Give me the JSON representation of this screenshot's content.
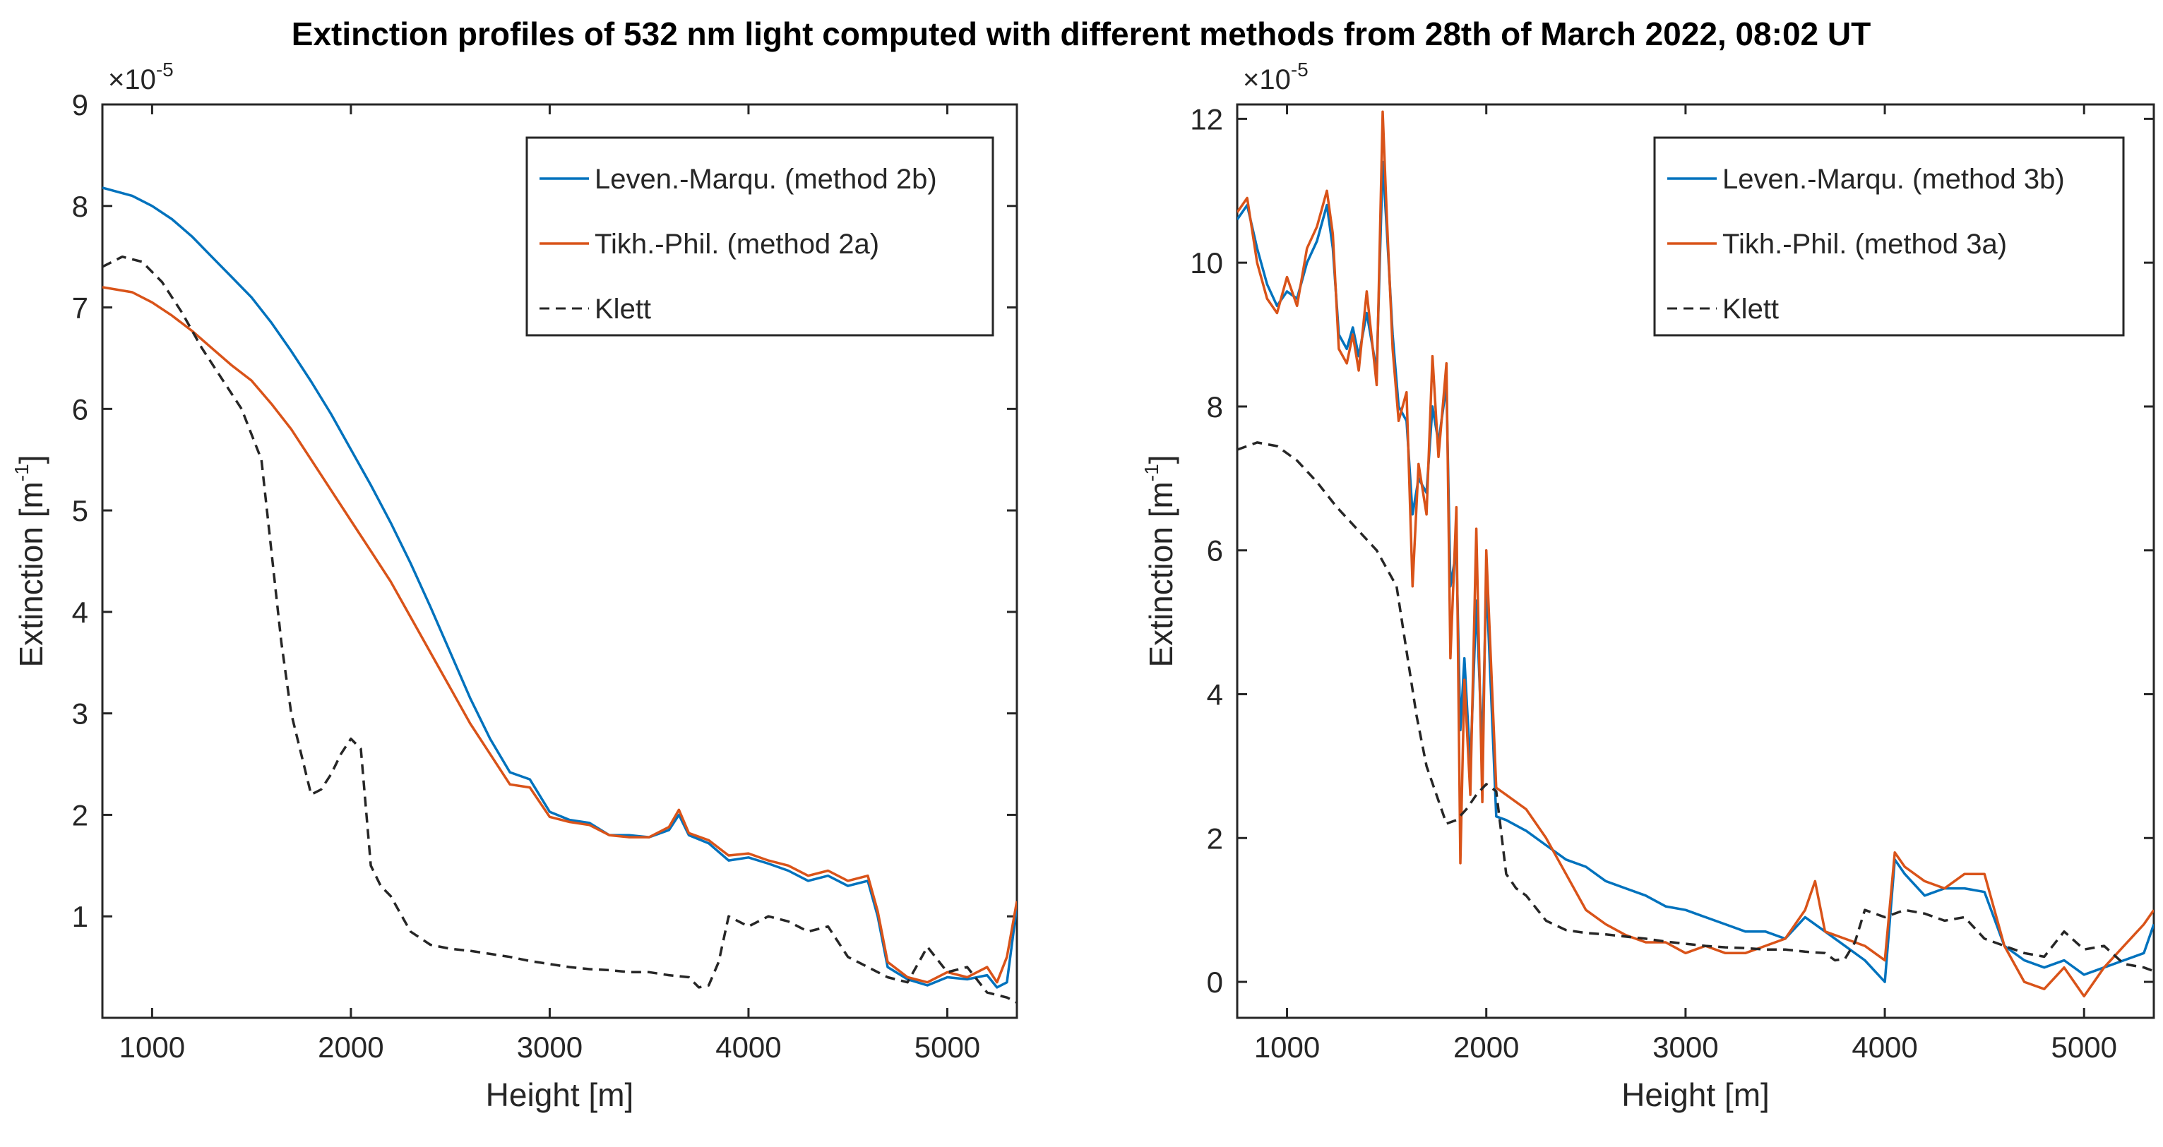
{
  "title": "Extinction profiles of 532 nm light computed with different methods from 28th of March 2022, 08:02 UT",
  "colors": {
    "blue": "#0072BD",
    "orange": "#D95319",
    "black": "#262626"
  },
  "chart_data": [
    {
      "type": "line",
      "xlabel": "Height [m]",
      "ylabel": "Extinction [m",
      "ylabel_exp": "-1",
      "ylabel_close": "]",
      "exponent_base": "×10",
      "exponent_power": "-5",
      "xlim": [
        750,
        5350
      ],
      "ylim": [
        0,
        9
      ],
      "xticks": [
        1000,
        2000,
        3000,
        4000,
        5000
      ],
      "yticks": [
        1,
        2,
        3,
        4,
        5,
        6,
        7,
        8,
        9
      ],
      "legend_position": "top-right",
      "series": [
        {
          "name": "Leven.-Marqu. (method 2b)",
          "color": "#0072BD",
          "style": "solid",
          "x": [
            750,
            900,
            1000,
            1100,
            1200,
            1300,
            1400,
            1500,
            1600,
            1700,
            1800,
            1900,
            2000,
            2100,
            2200,
            2300,
            2400,
            2500,
            2600,
            2700,
            2800,
            2900,
            3000,
            3100,
            3200,
            3300,
            3400,
            3500,
            3600,
            3650,
            3700,
            3800,
            3900,
            4000,
            4100,
            4200,
            4300,
            4400,
            4500,
            4600,
            4650,
            4700,
            4800,
            4900,
            5000,
            5100,
            5200,
            5250,
            5300,
            5350
          ],
          "y": [
            8.18,
            8.1,
            8.0,
            7.87,
            7.7,
            7.5,
            7.3,
            7.1,
            6.85,
            6.57,
            6.27,
            5.95,
            5.6,
            5.25,
            4.88,
            4.48,
            4.05,
            3.6,
            3.15,
            2.75,
            2.42,
            2.35,
            2.03,
            1.95,
            1.92,
            1.8,
            1.8,
            1.78,
            1.85,
            2.0,
            1.8,
            1.72,
            1.55,
            1.58,
            1.52,
            1.45,
            1.35,
            1.4,
            1.3,
            1.35,
            1.0,
            0.5,
            0.38,
            0.32,
            0.4,
            0.38,
            0.42,
            0.3,
            0.35,
            1.1
          ]
        },
        {
          "name": "Tikh.-Phil. (method 2a)",
          "color": "#D95319",
          "style": "solid",
          "x": [
            750,
            900,
            1000,
            1100,
            1200,
            1300,
            1400,
            1500,
            1600,
            1700,
            1800,
            1900,
            2000,
            2100,
            2200,
            2300,
            2400,
            2500,
            2600,
            2700,
            2800,
            2900,
            3000,
            3100,
            3200,
            3300,
            3400,
            3500,
            3600,
            3650,
            3700,
            3800,
            3900,
            4000,
            4100,
            4200,
            4300,
            4400,
            4500,
            4600,
            4650,
            4700,
            4800,
            4900,
            5000,
            5100,
            5200,
            5250,
            5300,
            5350
          ],
          "y": [
            7.2,
            7.15,
            7.05,
            6.92,
            6.77,
            6.6,
            6.43,
            6.28,
            6.05,
            5.8,
            5.5,
            5.2,
            4.9,
            4.6,
            4.3,
            3.95,
            3.6,
            3.25,
            2.9,
            2.6,
            2.3,
            2.27,
            1.98,
            1.93,
            1.9,
            1.8,
            1.78,
            1.78,
            1.88,
            2.05,
            1.82,
            1.75,
            1.6,
            1.62,
            1.55,
            1.5,
            1.4,
            1.45,
            1.35,
            1.4,
            1.05,
            0.55,
            0.4,
            0.35,
            0.45,
            0.4,
            0.5,
            0.35,
            0.6,
            1.15
          ]
        },
        {
          "name": "Klett",
          "color": "#262626",
          "style": "dashed",
          "x": [
            750,
            850,
            950,
            1050,
            1150,
            1250,
            1350,
            1450,
            1550,
            1600,
            1650,
            1700,
            1750,
            1800,
            1850,
            1900,
            1950,
            2000,
            2050,
            2100,
            2150,
            2200,
            2300,
            2400,
            2500,
            2600,
            2700,
            2800,
            2900,
            3000,
            3100,
            3200,
            3300,
            3400,
            3500,
            3600,
            3700,
            3750,
            3800,
            3850,
            3900,
            4000,
            4100,
            4200,
            4300,
            4400,
            4500,
            4600,
            4700,
            4800,
            4900,
            5000,
            5100,
            5200,
            5300,
            5350
          ],
          "y": [
            7.4,
            7.5,
            7.45,
            7.25,
            6.95,
            6.6,
            6.3,
            6.0,
            5.5,
            4.6,
            3.7,
            3.0,
            2.6,
            2.2,
            2.25,
            2.4,
            2.6,
            2.75,
            2.65,
            1.5,
            1.3,
            1.2,
            0.85,
            0.72,
            0.68,
            0.66,
            0.63,
            0.6,
            0.56,
            0.53,
            0.5,
            0.48,
            0.47,
            0.45,
            0.45,
            0.42,
            0.4,
            0.3,
            0.32,
            0.55,
            1.0,
            0.9,
            1.0,
            0.95,
            0.85,
            0.9,
            0.6,
            0.5,
            0.4,
            0.35,
            0.7,
            0.45,
            0.5,
            0.25,
            0.2,
            0.15
          ]
        }
      ]
    },
    {
      "type": "line",
      "xlabel": "Height [m]",
      "ylabel": "Extinction [m",
      "ylabel_exp": "-1",
      "ylabel_close": "]",
      "exponent_base": "×10",
      "exponent_power": "-5",
      "xlim": [
        750,
        5350
      ],
      "ylim": [
        -0.5,
        12.2
      ],
      "xticks": [
        1000,
        2000,
        3000,
        4000,
        5000
      ],
      "yticks": [
        0,
        2,
        4,
        6,
        8,
        10,
        12
      ],
      "legend_position": "top-right",
      "series": [
        {
          "name": "Leven.-Marqu. (method 3b)",
          "color": "#0072BD",
          "style": "solid",
          "x": [
            750,
            800,
            850,
            900,
            950,
            1000,
            1050,
            1100,
            1150,
            1200,
            1230,
            1260,
            1300,
            1330,
            1360,
            1400,
            1450,
            1480,
            1500,
            1530,
            1560,
            1600,
            1630,
            1660,
            1700,
            1730,
            1760,
            1800,
            1820,
            1850,
            1870,
            1890,
            1920,
            1950,
            1980,
            2000,
            2050,
            2100,
            2200,
            2300,
            2400,
            2500,
            2600,
            2700,
            2800,
            2900,
            3000,
            3100,
            3200,
            3300,
            3400,
            3500,
            3600,
            3700,
            3800,
            3900,
            4000,
            4050,
            4100,
            4200,
            4300,
            4400,
            4500,
            4600,
            4700,
            4800,
            4900,
            5000,
            5100,
            5200,
            5300,
            5350
          ],
          "y": [
            10.6,
            10.8,
            10.2,
            9.7,
            9.4,
            9.6,
            9.5,
            10.0,
            10.3,
            10.8,
            10.2,
            9.0,
            8.8,
            9.1,
            8.7,
            9.3,
            8.5,
            11.4,
            10.5,
            9.0,
            8.0,
            7.8,
            6.5,
            7.0,
            6.8,
            8.0,
            7.5,
            8.3,
            5.5,
            6.0,
            3.5,
            4.5,
            3.0,
            5.3,
            3.2,
            5.6,
            2.3,
            2.25,
            2.1,
            1.9,
            1.7,
            1.6,
            1.4,
            1.3,
            1.2,
            1.05,
            1.0,
            0.9,
            0.8,
            0.7,
            0.7,
            0.6,
            0.9,
            0.7,
            0.5,
            0.3,
            0.0,
            1.7,
            1.5,
            1.2,
            1.3,
            1.3,
            1.25,
            0.5,
            0.3,
            0.2,
            0.3,
            0.1,
            0.2,
            0.3,
            0.4,
            0.8
          ]
        },
        {
          "name": "Tikh.-Phil. (method 3a)",
          "color": "#D95319",
          "style": "solid",
          "x": [
            750,
            800,
            850,
            900,
            950,
            1000,
            1050,
            1100,
            1150,
            1200,
            1230,
            1260,
            1300,
            1330,
            1360,
            1400,
            1450,
            1480,
            1500,
            1530,
            1560,
            1600,
            1630,
            1660,
            1700,
            1730,
            1760,
            1800,
            1820,
            1850,
            1870,
            1890,
            1920,
            1950,
            1980,
            2000,
            2050,
            2100,
            2200,
            2300,
            2400,
            2500,
            2600,
            2700,
            2800,
            2900,
            3000,
            3100,
            3200,
            3300,
            3400,
            3500,
            3600,
            3650,
            3700,
            3800,
            3900,
            4000,
            4050,
            4100,
            4200,
            4300,
            4400,
            4500,
            4600,
            4700,
            4800,
            4900,
            5000,
            5100,
            5200,
            5300,
            5350
          ],
          "y": [
            10.7,
            10.9,
            10.0,
            9.5,
            9.3,
            9.8,
            9.4,
            10.2,
            10.5,
            11.0,
            10.4,
            8.8,
            8.6,
            9.0,
            8.5,
            9.6,
            8.3,
            12.1,
            10.7,
            8.8,
            7.8,
            8.2,
            5.5,
            7.2,
            6.5,
            8.7,
            7.3,
            8.6,
            4.5,
            6.6,
            1.65,
            4.2,
            2.6,
            6.3,
            2.5,
            6.0,
            2.7,
            2.6,
            2.4,
            2.0,
            1.5,
            1.0,
            0.8,
            0.65,
            0.55,
            0.55,
            0.4,
            0.5,
            0.4,
            0.4,
            0.5,
            0.6,
            1.0,
            1.4,
            0.7,
            0.6,
            0.5,
            0.3,
            1.8,
            1.6,
            1.4,
            1.3,
            1.5,
            1.5,
            0.5,
            0.0,
            -0.1,
            0.2,
            -0.2,
            0.2,
            0.5,
            0.8,
            1.0
          ]
        },
        {
          "name": "Klett",
          "color": "#262626",
          "style": "dashed",
          "x": [
            750,
            850,
            950,
            1050,
            1150,
            1250,
            1350,
            1450,
            1550,
            1600,
            1650,
            1700,
            1750,
            1800,
            1850,
            1900,
            1950,
            2000,
            2050,
            2100,
            2150,
            2200,
            2300,
            2400,
            2500,
            2600,
            2700,
            2800,
            2900,
            3000,
            3100,
            3200,
            3300,
            3400,
            3500,
            3600,
            3700,
            3750,
            3800,
            3850,
            3900,
            4000,
            4100,
            4200,
            4300,
            4400,
            4500,
            4600,
            4700,
            4800,
            4900,
            5000,
            5100,
            5200,
            5300,
            5350
          ],
          "y": [
            7.4,
            7.5,
            7.45,
            7.25,
            6.95,
            6.6,
            6.3,
            6.0,
            5.5,
            4.6,
            3.7,
            3.0,
            2.6,
            2.2,
            2.25,
            2.4,
            2.6,
            2.75,
            2.65,
            1.5,
            1.3,
            1.2,
            0.85,
            0.72,
            0.68,
            0.66,
            0.63,
            0.6,
            0.56,
            0.53,
            0.5,
            0.48,
            0.47,
            0.45,
            0.45,
            0.42,
            0.4,
            0.3,
            0.32,
            0.55,
            1.0,
            0.9,
            1.0,
            0.95,
            0.85,
            0.9,
            0.6,
            0.5,
            0.4,
            0.35,
            0.7,
            0.45,
            0.5,
            0.25,
            0.2,
            0.15
          ]
        }
      ]
    }
  ]
}
